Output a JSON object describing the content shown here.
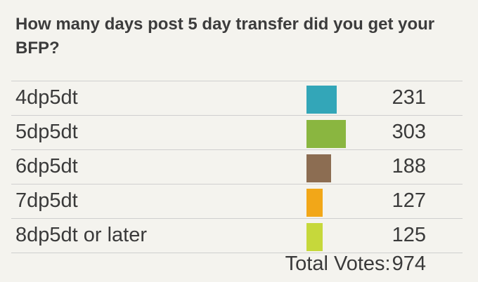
{
  "question": "How many days post 5 day transfer did you get your BFP?",
  "chart_data": {
    "type": "bar",
    "title": "How many days post 5 day transfer did you get your BFP?",
    "categories": [
      "4dp5dt",
      "5dp5dt",
      "6dp5dt",
      "7dp5dt",
      "8dp5dt or later"
    ],
    "values": [
      231,
      303,
      188,
      127,
      125
    ],
    "colors": [
      "#33a6b8",
      "#8ab640",
      "#8c6d52",
      "#f2a718",
      "#c6d83b"
    ],
    "orientation": "horizontal"
  },
  "total": {
    "label": "Total Votes:",
    "value": "974"
  }
}
